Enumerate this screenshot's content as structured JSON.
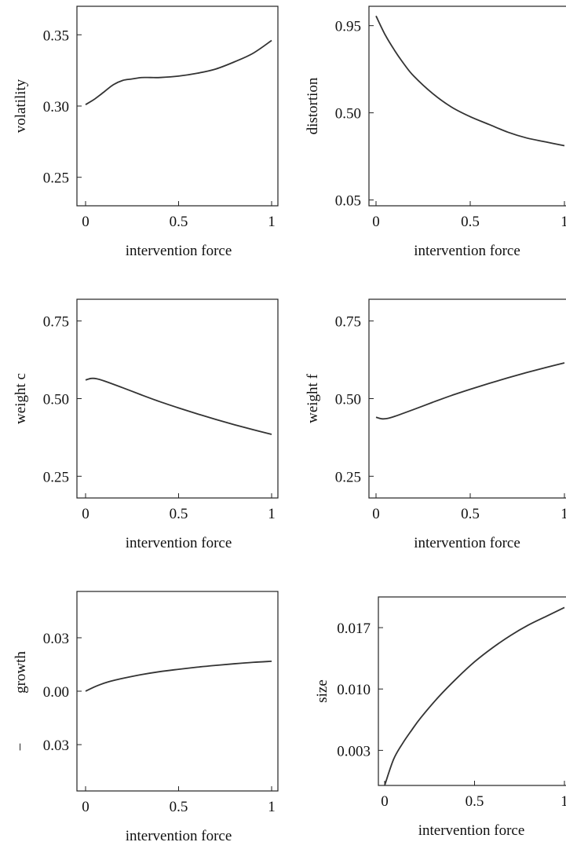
{
  "chart_data": [
    {
      "type": "line",
      "xlabel": "intervention  force",
      "ylabel": "volatility",
      "xlim": [
        0,
        1
      ],
      "ylim": [
        0.23,
        0.37
      ],
      "xticks": [
        {
          "v": 0,
          "label": "0"
        },
        {
          "v": 0.5,
          "label": "0.5"
        },
        {
          "v": 1,
          "label": "1"
        }
      ],
      "yticks": [
        {
          "v": 0.25,
          "label": "0.25"
        },
        {
          "v": 0.3,
          "label": "0.30"
        },
        {
          "v": 0.35,
          "label": "0.35"
        }
      ],
      "x": [
        0,
        0.05,
        0.1,
        0.15,
        0.2,
        0.25,
        0.3,
        0.35,
        0.4,
        0.5,
        0.6,
        0.7,
        0.8,
        0.9,
        1.0
      ],
      "y": [
        0.301,
        0.305,
        0.31,
        0.315,
        0.318,
        0.319,
        0.32,
        0.32,
        0.32,
        0.321,
        0.323,
        0.326,
        0.331,
        0.337,
        0.346
      ]
    },
    {
      "type": "line",
      "xlabel": "intervention  force",
      "ylabel": "distortion",
      "xlim": [
        0,
        1
      ],
      "ylim": [
        0.02,
        1.05
      ],
      "xticks": [
        {
          "v": 0,
          "label": "0"
        },
        {
          "v": 0.5,
          "label": "0.5"
        },
        {
          "v": 1,
          "label": "1"
        }
      ],
      "yticks": [
        {
          "v": 0.05,
          "label": "0.05"
        },
        {
          "v": 0.5,
          "label": "0.50"
        },
        {
          "v": 0.95,
          "label": "0.95"
        }
      ],
      "x": [
        0,
        0.05,
        0.1,
        0.15,
        0.2,
        0.3,
        0.4,
        0.5,
        0.6,
        0.7,
        0.8,
        0.9,
        1.0
      ],
      "y": [
        1.0,
        0.9,
        0.82,
        0.75,
        0.69,
        0.6,
        0.53,
        0.48,
        0.44,
        0.4,
        0.37,
        0.35,
        0.33
      ]
    },
    {
      "type": "line",
      "xlabel": "intervention  force",
      "ylabel": "weight c",
      "xlim": [
        0,
        1
      ],
      "ylim": [
        0.18,
        0.82
      ],
      "xticks": [
        {
          "v": 0,
          "label": "0"
        },
        {
          "v": 0.5,
          "label": "0.5"
        },
        {
          "v": 1,
          "label": "1"
        }
      ],
      "yticks": [
        {
          "v": 0.25,
          "label": "0.25"
        },
        {
          "v": 0.5,
          "label": "0.50"
        },
        {
          "v": 0.75,
          "label": "0.75"
        }
      ],
      "x": [
        0,
        0.03,
        0.06,
        0.1,
        0.2,
        0.3,
        0.4,
        0.5,
        0.6,
        0.7,
        0.8,
        0.9,
        1.0
      ],
      "y": [
        0.56,
        0.565,
        0.564,
        0.557,
        0.535,
        0.512,
        0.49,
        0.47,
        0.451,
        0.433,
        0.416,
        0.4,
        0.385
      ]
    },
    {
      "type": "line",
      "xlabel": "intervention  force",
      "ylabel": "weight f",
      "xlim": [
        0,
        1
      ],
      "ylim": [
        0.18,
        0.82
      ],
      "xticks": [
        {
          "v": 0,
          "label": "0"
        },
        {
          "v": 0.5,
          "label": "0.5"
        },
        {
          "v": 1,
          "label": "1"
        }
      ],
      "yticks": [
        {
          "v": 0.25,
          "label": "0.25"
        },
        {
          "v": 0.5,
          "label": "0.50"
        },
        {
          "v": 0.75,
          "label": "0.75"
        }
      ],
      "x": [
        0,
        0.03,
        0.06,
        0.1,
        0.2,
        0.3,
        0.4,
        0.5,
        0.6,
        0.7,
        0.8,
        0.9,
        1.0
      ],
      "y": [
        0.44,
        0.435,
        0.436,
        0.443,
        0.465,
        0.488,
        0.51,
        0.53,
        0.549,
        0.567,
        0.584,
        0.6,
        0.615
      ]
    },
    {
      "type": "line",
      "xlabel": "intervention  force",
      "ylabel": "growth",
      "ylabel_prefix": "−",
      "xlim": [
        0,
        1
      ],
      "ylim": [
        -0.056,
        0.056
      ],
      "xticks": [
        {
          "v": 0,
          "label": "0"
        },
        {
          "v": 0.5,
          "label": "0.5"
        },
        {
          "v": 1,
          "label": "1"
        }
      ],
      "yticks": [
        {
          "v": -0.03,
          "label": "0.03"
        },
        {
          "v": 0.0,
          "label": "0.00"
        },
        {
          "v": 0.03,
          "label": "0.03"
        }
      ],
      "x": [
        0,
        0.05,
        0.1,
        0.15,
        0.2,
        0.3,
        0.4,
        0.5,
        0.6,
        0.7,
        0.8,
        0.9,
        1.0
      ],
      "y": [
        0.0,
        0.0025,
        0.0045,
        0.006,
        0.0072,
        0.0093,
        0.011,
        0.0123,
        0.0135,
        0.0145,
        0.0154,
        0.0162,
        0.0168
      ]
    },
    {
      "type": "line",
      "xlabel": "intervention  force",
      "ylabel": "size",
      "xlim": [
        -0.1,
        1.0
      ],
      "ylim": [
        -0.001,
        0.0205
      ],
      "xticks": [
        {
          "v": 0,
          "label": "0"
        },
        {
          "v": 0.5,
          "label": "0.5"
        },
        {
          "v": 1,
          "label": "1"
        }
      ],
      "yticks": [
        {
          "v": 0.003,
          "label": "0.003"
        },
        {
          "v": 0.01,
          "label": "0.010"
        },
        {
          "v": 0.017,
          "label": "0.017"
        }
      ],
      "x": [
        0,
        0.05,
        0.1,
        0.15,
        0.2,
        0.3,
        0.4,
        0.5,
        0.6,
        0.7,
        0.8,
        0.9,
        1.0
      ],
      "y": [
        -0.001,
        0.002,
        0.0038,
        0.0053,
        0.0067,
        0.0091,
        0.0112,
        0.0131,
        0.0147,
        0.0161,
        0.0173,
        0.0183,
        0.0193
      ]
    }
  ]
}
